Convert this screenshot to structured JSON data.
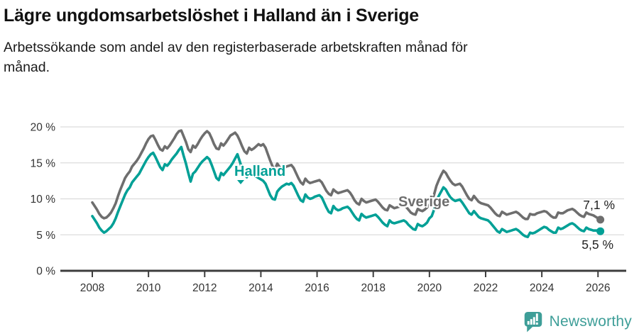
{
  "header": {
    "title": "Lägre ungdomsarbetslöshet i Halland än i Sverige",
    "subtitle_lines": [
      "Arbetssökande som andel av den registerbaserade arbetskraften månad för",
      "månad."
    ]
  },
  "chart_data": {
    "type": "line",
    "title": "Lägre ungdomsarbetslöshet i Halland än i Sverige",
    "subtitle": "Arbetssökande som andel av den registerbaserade arbetskraften månad för månad.",
    "unit": "%",
    "frequency": "monthly",
    "x_start": {
      "year": 2008,
      "month": 1
    },
    "x_end": {
      "year": 2026,
      "month": 2
    },
    "ylim": [
      0,
      21
    ],
    "grid": "horizontal",
    "legend_position": "inline-labels",
    "y_ticks": {
      "values": [
        0,
        5,
        10,
        15,
        20
      ],
      "labels": [
        "0 %",
        "5 %",
        "10 %",
        "15 %",
        "20 %"
      ]
    },
    "x_ticks": {
      "years": [
        2008,
        2010,
        2012,
        2014,
        2016,
        2018,
        2020,
        2022,
        2024,
        2026
      ],
      "labels": [
        "2008",
        "2010",
        "2012",
        "2014",
        "2016",
        "2018",
        "2020",
        "2022",
        "2024",
        "2026"
      ]
    },
    "series": [
      {
        "name": "Sverige",
        "color": "#6e6e6e",
        "end_label": "7,1 %",
        "last_value": 7.1,
        "values": [
          9.5,
          9.0,
          8.5,
          7.9,
          7.5,
          7.3,
          7.4,
          7.7,
          8.1,
          8.7,
          9.4,
          10.4,
          11.3,
          12.1,
          12.9,
          13.4,
          13.8,
          14.5,
          14.9,
          15.3,
          15.8,
          16.4,
          17.0,
          17.7,
          18.3,
          18.7,
          18.8,
          18.2,
          17.5,
          16.9,
          16.7,
          17.3,
          17.0,
          17.4,
          17.9,
          18.4,
          19.0,
          19.4,
          19.5,
          18.7,
          17.9,
          16.9,
          16.5,
          17.4,
          17.1,
          17.6,
          18.2,
          18.7,
          19.1,
          19.4,
          19.1,
          18.4,
          17.6,
          17.0,
          16.9,
          17.7,
          17.4,
          17.8,
          18.3,
          18.8,
          19.0,
          19.2,
          18.8,
          18.1,
          17.3,
          16.6,
          16.3,
          17.1,
          16.8,
          17.0,
          17.3,
          17.6,
          17.4,
          17.6,
          17.1,
          16.2,
          15.3,
          14.5,
          14.1,
          14.9,
          14.4,
          14.2,
          14.3,
          14.5,
          14.6,
          14.7,
          14.3,
          13.6,
          12.9,
          12.3,
          12.0,
          12.8,
          12.4,
          12.2,
          12.3,
          12.4,
          12.5,
          12.6,
          12.3,
          11.7,
          11.1,
          10.7,
          10.5,
          11.3,
          11.0,
          10.8,
          10.9,
          11.0,
          11.1,
          11.2,
          10.9,
          10.4,
          9.8,
          9.4,
          9.2,
          10.0,
          9.7,
          9.5,
          9.6,
          9.7,
          9.8,
          9.9,
          9.6,
          9.2,
          8.8,
          8.5,
          8.4,
          9.1,
          8.9,
          8.7,
          8.8,
          8.9,
          9.0,
          9.1,
          8.9,
          8.5,
          8.1,
          7.9,
          7.8,
          8.6,
          8.4,
          8.3,
          8.5,
          8.8,
          9.2,
          9.6,
          10.6,
          11.8,
          12.6,
          13.3,
          13.9,
          13.6,
          13.0,
          12.5,
          12.1,
          11.9,
          12.0,
          12.1,
          11.7,
          11.1,
          10.5,
          10.0,
          9.8,
          10.4,
          10.0,
          9.6,
          9.4,
          9.3,
          9.2,
          9.1,
          8.8,
          8.4,
          8.0,
          7.7,
          7.6,
          8.2,
          8.0,
          7.8,
          7.9,
          8.0,
          8.1,
          8.2,
          8.0,
          7.7,
          7.4,
          7.2,
          7.2,
          7.9,
          7.8,
          7.8,
          8.0,
          8.1,
          8.2,
          8.3,
          8.2,
          7.9,
          7.6,
          7.4,
          7.4,
          8.1,
          8.0,
          8.0,
          8.2,
          8.4,
          8.5,
          8.6,
          8.4,
          8.1,
          7.8,
          7.6,
          7.5,
          8.1,
          7.9,
          7.8,
          7.7,
          7.5,
          7.3,
          7.1
        ]
      },
      {
        "name": "Halland",
        "color": "#00a096",
        "end_label": "5,5 %",
        "last_value": 5.5,
        "values": [
          7.6,
          7.1,
          6.6,
          6.0,
          5.6,
          5.3,
          5.5,
          5.8,
          6.1,
          6.6,
          7.3,
          8.2,
          9.0,
          9.8,
          10.6,
          11.2,
          11.6,
          12.3,
          12.7,
          13.1,
          13.5,
          14.1,
          14.7,
          15.3,
          15.8,
          16.2,
          16.4,
          15.8,
          15.1,
          14.4,
          14.0,
          14.8,
          14.6,
          15.0,
          15.5,
          15.9,
          16.3,
          16.8,
          17.2,
          16.0,
          14.9,
          13.6,
          12.4,
          13.5,
          13.8,
          14.3,
          14.8,
          15.2,
          15.5,
          15.8,
          15.5,
          14.7,
          13.8,
          12.9,
          12.6,
          13.6,
          13.3,
          13.7,
          14.1,
          14.5,
          15.0,
          15.6,
          16.2,
          15.2,
          14.2,
          13.4,
          13.0,
          14.0,
          13.7,
          13.4,
          13.1,
          12.9,
          12.7,
          12.5,
          12.1,
          11.3,
          10.5,
          10.0,
          9.9,
          11.0,
          11.4,
          11.7,
          11.9,
          12.1,
          12.0,
          12.2,
          11.8,
          11.1,
          10.4,
          9.8,
          9.6,
          10.6,
          10.2,
          10.0,
          10.1,
          10.3,
          10.4,
          10.5,
          10.2,
          9.5,
          8.8,
          8.2,
          8.0,
          9.0,
          8.6,
          8.4,
          8.5,
          8.7,
          8.8,
          8.9,
          8.6,
          8.1,
          7.6,
          7.2,
          7.0,
          7.9,
          7.6,
          7.4,
          7.5,
          7.6,
          7.7,
          7.8,
          7.5,
          7.1,
          6.7,
          6.4,
          6.2,
          7.0,
          6.7,
          6.6,
          6.7,
          6.8,
          6.9,
          7.0,
          6.8,
          6.4,
          6.1,
          5.8,
          5.7,
          6.5,
          6.3,
          6.2,
          6.4,
          6.7,
          7.3,
          7.6,
          8.5,
          9.7,
          10.4,
          11.0,
          11.6,
          11.3,
          10.7,
          10.2,
          9.9,
          9.7,
          9.8,
          9.9,
          9.5,
          9.0,
          8.5,
          8.0,
          7.8,
          8.3,
          7.9,
          7.5,
          7.3,
          7.2,
          7.1,
          7.0,
          6.7,
          6.3,
          5.9,
          5.5,
          5.3,
          5.8,
          5.6,
          5.4,
          5.5,
          5.6,
          5.7,
          5.8,
          5.6,
          5.3,
          5.0,
          4.8,
          4.7,
          5.3,
          5.2,
          5.3,
          5.5,
          5.7,
          5.9,
          6.1,
          6.0,
          5.7,
          5.5,
          5.3,
          5.3,
          6.0,
          5.8,
          5.9,
          6.1,
          6.3,
          6.5,
          6.6,
          6.4,
          6.1,
          5.8,
          5.6,
          5.5,
          6.0,
          5.8,
          5.7,
          5.6,
          5.6,
          5.6,
          5.5
        ]
      }
    ],
    "colors": {
      "gridline": "#dcdcdc",
      "axis": "#3d3d3d",
      "tick_text": "#333333",
      "end_label_text": "#222222"
    }
  },
  "footer": {
    "brand": "Newsworthy",
    "brand_color": "#3e9e98",
    "logo_icon": "bar-chart-speech-bubble"
  }
}
